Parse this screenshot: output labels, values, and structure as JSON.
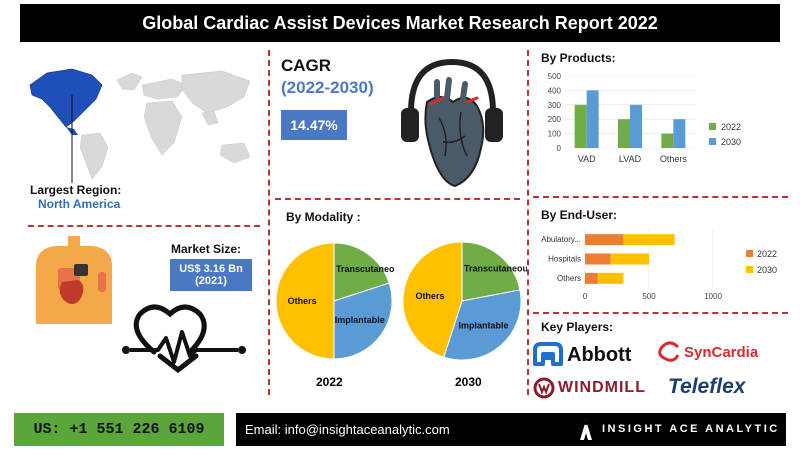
{
  "header": {
    "title": "Global Cardiac Assist Devices Market Research Report 2022"
  },
  "region": {
    "label": "Largest Region:",
    "value": "North America"
  },
  "market_size": {
    "label": "Market Size:",
    "line1": "US$ 3.16 Bn",
    "line2": "(2021)"
  },
  "cagr": {
    "title": "CAGR",
    "period": "(2022-2030)",
    "value": "14.47%"
  },
  "sections": {
    "products": "By Products:",
    "modality": "By Modality :",
    "end_user": "By End-User:",
    "key_players": "Key Players:"
  },
  "players": [
    "Abbott",
    "SynCardia",
    "WINDMILL",
    "Teleflex"
  ],
  "footer": {
    "phone": "US: +1 551 226 6109",
    "email": "Email: info@insightaceanalytic.com",
    "brand": "INSIGHT ACE ANALYTIC"
  },
  "colors": {
    "green": "#70ad47",
    "blue": "#5b9bd5",
    "orange": "#ed7d31",
    "yellow": "#ffc000",
    "region": "#1f4fb8",
    "accent_blue": "#4a78c4",
    "dash": "#b33333"
  },
  "chart_data": [
    {
      "type": "bar",
      "title": "By Products:",
      "categories": [
        "VAD",
        "LVAD",
        "Others"
      ],
      "series": [
        {
          "name": "2022",
          "values": [
            300,
            200,
            100
          ],
          "color": "#70ad47"
        },
        {
          "name": "2030",
          "values": [
            400,
            300,
            200
          ],
          "color": "#5b9bd5"
        }
      ],
      "ylim": [
        0,
        500
      ],
      "yticks": [
        0,
        100,
        200,
        300,
        400,
        500
      ],
      "legend": "right"
    },
    {
      "type": "pie",
      "title": "By Modality :",
      "label": "2022",
      "slices": [
        {
          "name": "Transcutaneous",
          "value": 20,
          "color": "#70ad47"
        },
        {
          "name": "Implantable",
          "value": 30,
          "color": "#5b9bd5"
        },
        {
          "name": "Others",
          "value": 50,
          "color": "#ffc000"
        }
      ]
    },
    {
      "type": "pie",
      "title": "By Modality :",
      "label": "2030",
      "slices": [
        {
          "name": "Transcutaneous",
          "value": 22,
          "color": "#70ad47"
        },
        {
          "name": "Implantable",
          "value": 33,
          "color": "#5b9bd5"
        },
        {
          "name": "Others",
          "value": 45,
          "color": "#ffc000"
        }
      ]
    },
    {
      "type": "bar",
      "orientation": "horizontal",
      "stacked": true,
      "title": "By End-User:",
      "categories": [
        "Abulatory...",
        "Hospitals",
        "Others"
      ],
      "series": [
        {
          "name": "2022",
          "values": [
            300,
            200,
            100
          ],
          "color": "#ed7d31"
        },
        {
          "name": "2030",
          "values": [
            400,
            300,
            200
          ],
          "color": "#ffc000"
        }
      ],
      "xlim": [
        0,
        1000
      ],
      "xticks": [
        0,
        500,
        1000
      ],
      "legend": "right"
    }
  ]
}
